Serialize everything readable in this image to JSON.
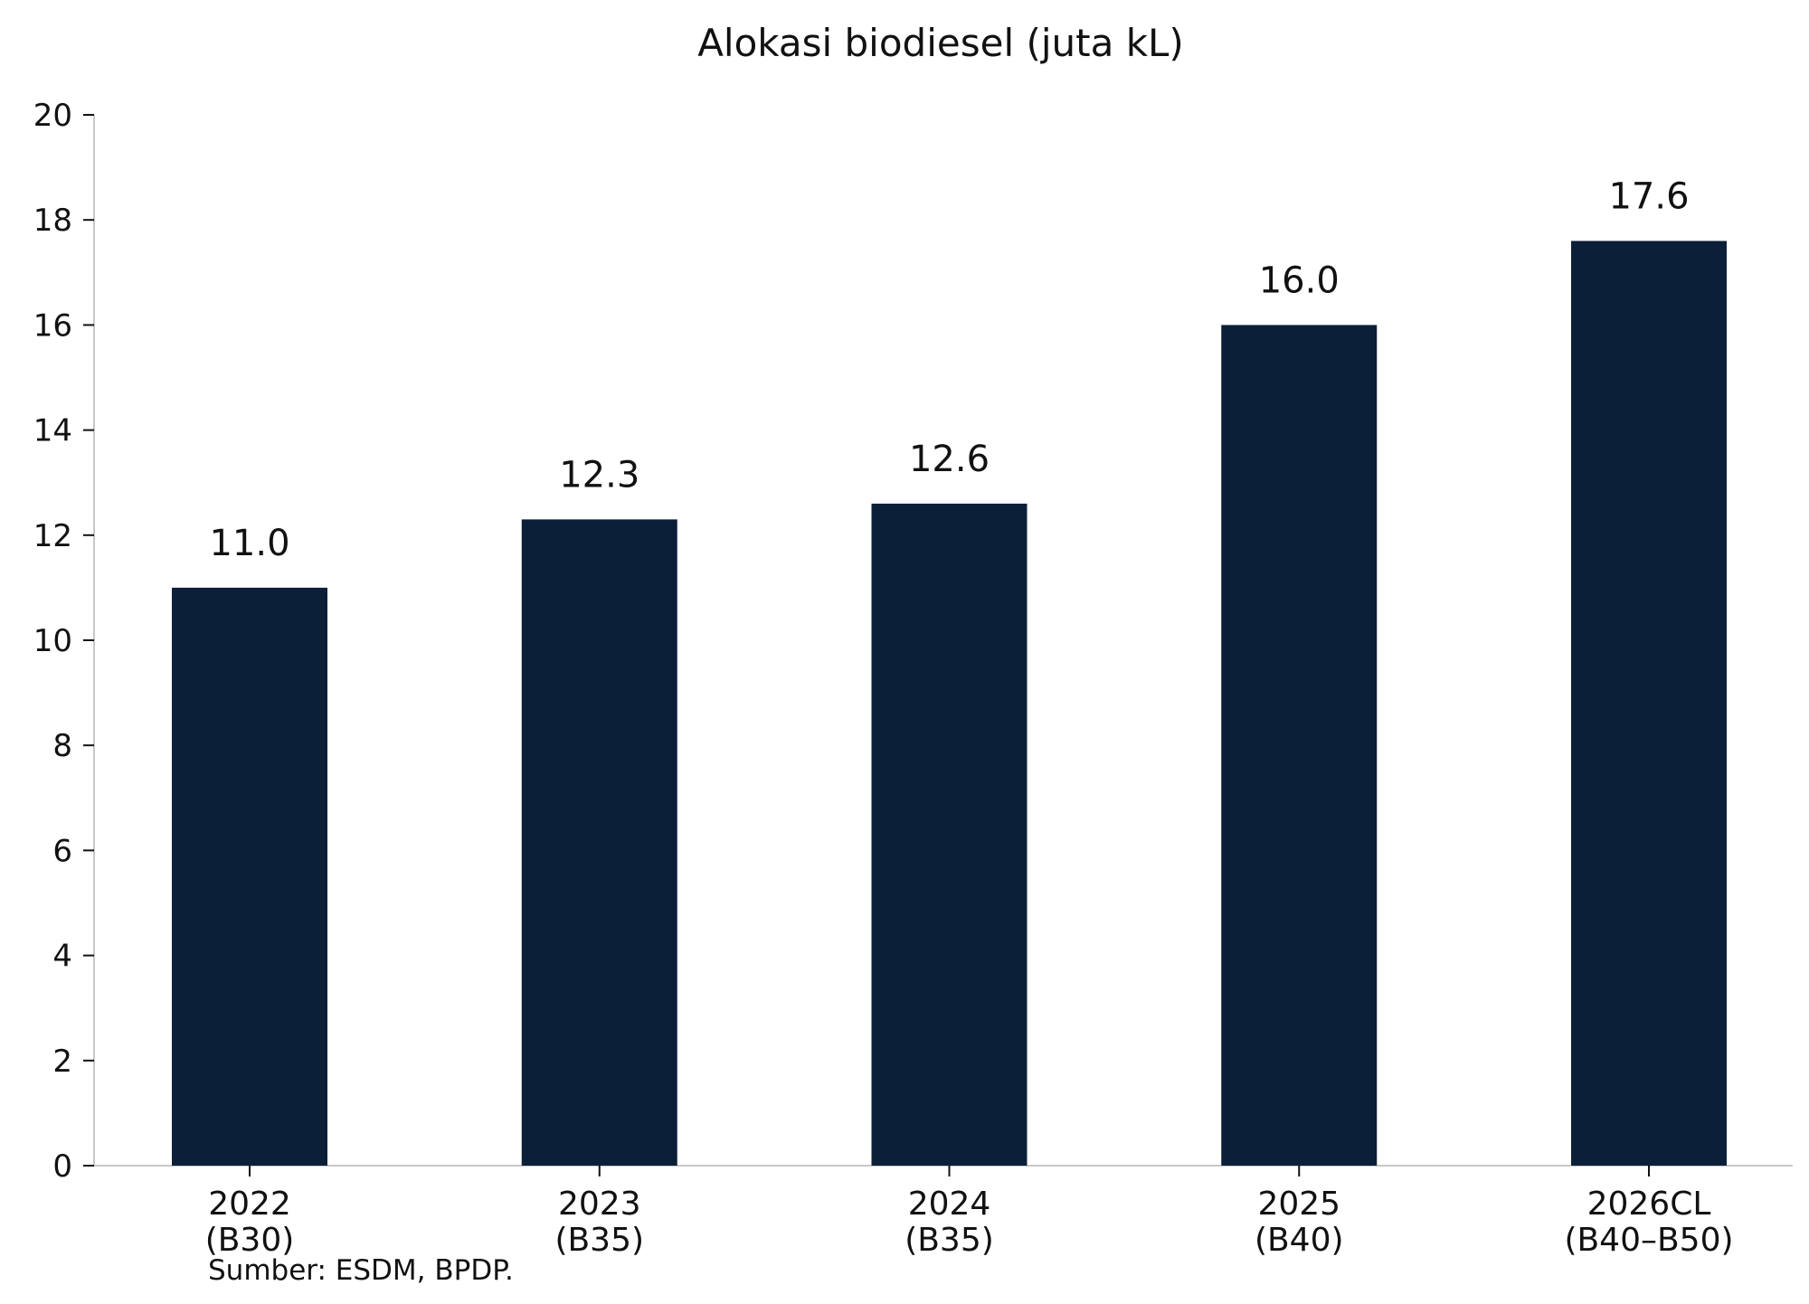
{
  "chart_data": {
    "type": "bar",
    "title": "Alokasi biodiesel (juta kL)",
    "xlabel": "",
    "ylabel": "",
    "categories": [
      [
        "2022",
        "(B30)"
      ],
      [
        "2023",
        "(B35)"
      ],
      [
        "2024",
        "(B35)"
      ],
      [
        "2025",
        "(B40)"
      ],
      [
        "2026CL",
        "(B40–B50)"
      ]
    ],
    "values": [
      11.0,
      12.3,
      12.6,
      16.0,
      17.6
    ],
    "value_labels": [
      "11.0",
      "12.3",
      "12.6",
      "16.0",
      "17.6"
    ],
    "ylim": [
      0,
      20
    ],
    "yticks": [
      0,
      2,
      4,
      6,
      8,
      10,
      12,
      14,
      16,
      18,
      20
    ],
    "grid": false,
    "legend": "none",
    "colors": {
      "bar": "#0c1f38",
      "axis": "#c8c8c8",
      "text": "#111111"
    }
  },
  "source": "Sumber: ESDM, BPDP."
}
